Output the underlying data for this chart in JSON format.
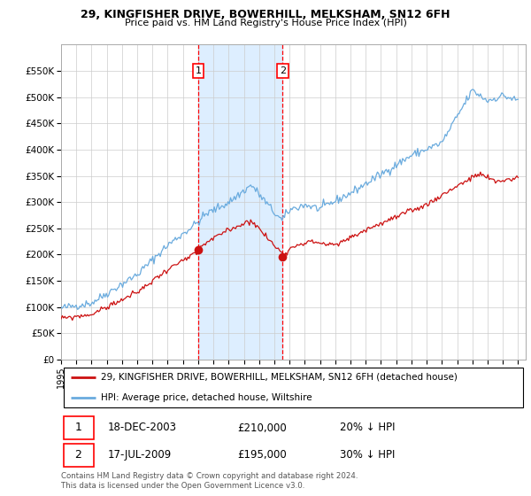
{
  "title1": "29, KINGFISHER DRIVE, BOWERHILL, MELKSHAM, SN12 6FH",
  "title2": "Price paid vs. HM Land Registry's House Price Index (HPI)",
  "ylim": [
    0,
    600000
  ],
  "xlim_start": 1995,
  "xlim_end": 2025.5,
  "legend_line1": "29, KINGFISHER DRIVE, BOWERHILL, MELKSHAM, SN12 6FH (detached house)",
  "legend_line2": "HPI: Average price, detached house, Wiltshire",
  "transaction1_date": "18-DEC-2003",
  "transaction1_price": "£210,000",
  "transaction1_hpi": "20% ↓ HPI",
  "transaction1_x": 2004.0,
  "transaction1_y": 210000,
  "transaction2_date": "17-JUL-2009",
  "transaction2_price": "£195,000",
  "transaction2_hpi": "30% ↓ HPI",
  "transaction2_x": 2009.54,
  "transaction2_y": 195000,
  "footer": "Contains HM Land Registry data © Crown copyright and database right 2024.\nThis data is licensed under the Open Government Licence v3.0.",
  "hpi_color": "#6aabde",
  "price_color": "#cc1111",
  "shading_color": "#ddeeff",
  "grid_color": "#cccccc",
  "background_color": "#ffffff"
}
